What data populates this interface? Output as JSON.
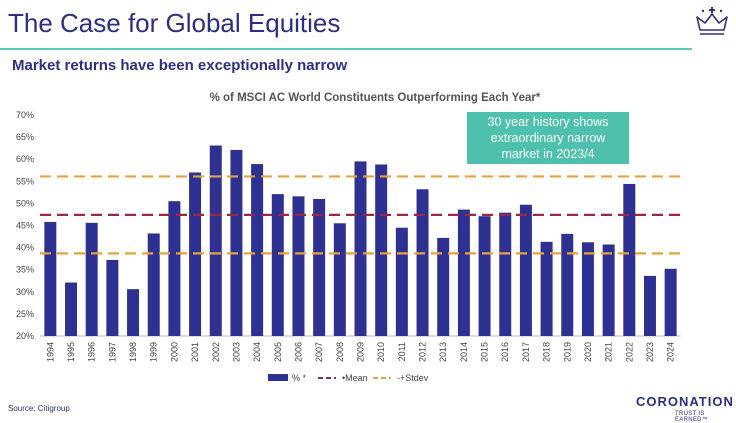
{
  "header": {
    "title": "The Case for Global Equities",
    "subtitle": "Market returns have been exceptionally narrow"
  },
  "icons": {
    "logo": "crown-icon"
  },
  "callout": {
    "text": "30 year history shows extraordinary narrow market in 2023/4"
  },
  "footer": {
    "source": "Source: Citigroup",
    "brand": "CORONATION",
    "tagline": "TRUST IS EARNED™"
  },
  "colors": {
    "brand": "#2b2f86",
    "accent": "#5cc8b8",
    "callout": "#4dc1ab",
    "bar": "#2e3192",
    "mean": "#9b2743",
    "stdev": "#e8a23c"
  },
  "chart_data": {
    "type": "bar",
    "title": "% of MSCI AC World Constituents Outperforming Each Year*",
    "categories": [
      "1994",
      "1995",
      "1996",
      "1997",
      "1998",
      "1999",
      "2000",
      "2001",
      "2002",
      "2003",
      "2004",
      "2005",
      "2006",
      "2007",
      "2008",
      "2009",
      "2010",
      "2011",
      "2012",
      "2013",
      "2014",
      "2015",
      "2016",
      "2017",
      "2018",
      "2019",
      "2020",
      "2021",
      "2022",
      "2023",
      "2024"
    ],
    "series": [
      {
        "name": "% *",
        "values": [
          45.8,
          32.1,
          45.6,
          37.2,
          30.6,
          43.2,
          50.5,
          57.0,
          63.1,
          62.1,
          58.9,
          52.1,
          51.6,
          51.0,
          45.5,
          59.5,
          58.8,
          44.5,
          53.2,
          42.2,
          48.6,
          47.1,
          47.9,
          49.7,
          41.3,
          43.1,
          41.2,
          40.7,
          54.4,
          33.6,
          35.2
        ]
      }
    ],
    "lines": [
      {
        "name": "•Mean",
        "value": 47.4
      },
      {
        "name": "-+Stdev",
        "value": 56.1
      },
      {
        "name": "-+Stdev",
        "value": 38.7
      }
    ],
    "legend": [
      "% *",
      "•Mean",
      "-+Stdev"
    ],
    "legend_position": "bottom",
    "ylim": [
      20,
      70
    ],
    "ytick_step": 5,
    "ytick_suffix": "%",
    "grid": false
  }
}
